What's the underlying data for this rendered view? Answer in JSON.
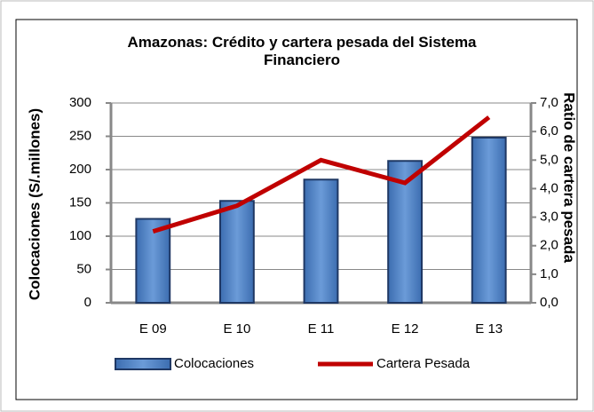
{
  "chart_data": {
    "type": "bar-line",
    "title": "Amazonas: Crédito y cartera pesada del Sistema Financiero",
    "y_label": "Colocaciones (S/.millones)",
    "y2_label": "Ratio de cartera pesada",
    "categories": [
      "E 09",
      "E 10",
      "E 11",
      "E 12",
      "E 13"
    ],
    "series": [
      {
        "name": "Colocaciones",
        "type": "bar",
        "color": "#4f81bd",
        "values": [
          126,
          153,
          185,
          213,
          248
        ]
      },
      {
        "name": "Cartera Pesada",
        "type": "line",
        "axis": "y2",
        "color": "#c00000",
        "values": [
          2.5,
          3.4,
          5.0,
          4.2,
          6.5
        ]
      }
    ],
    "ylim": [
      0,
      300
    ],
    "yticks": [
      0,
      50,
      100,
      150,
      200,
      250,
      300
    ],
    "y2lim": [
      0,
      7
    ],
    "y2ticks": [
      {
        "value": 0,
        "label": "0,0"
      },
      {
        "value": 1,
        "label": "1,0"
      },
      {
        "value": 2,
        "label": "2,0"
      },
      {
        "value": 3,
        "label": "3,0"
      },
      {
        "value": 4,
        "label": "4,0"
      },
      {
        "value": 5,
        "label": "5,0"
      },
      {
        "value": 6,
        "label": "6,0"
      },
      {
        "value": 7,
        "label": "7,0"
      }
    ],
    "grid": true,
    "legend": "bottom"
  }
}
